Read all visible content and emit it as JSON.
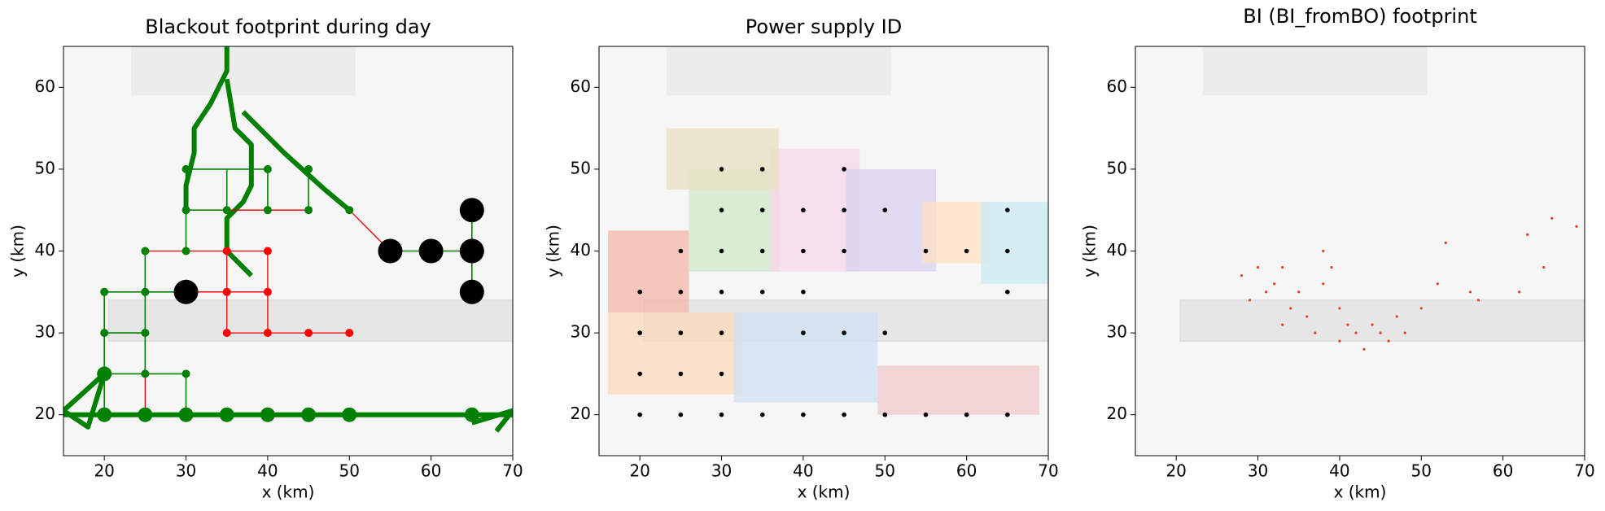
{
  "chart_data": [
    {
      "type": "network",
      "title": "Blackout footprint during day",
      "xlabel": "x (km)",
      "ylabel": "y (km)",
      "xlim": [
        15,
        70
      ],
      "ylim": [
        15,
        65
      ],
      "xticks": [
        20,
        30,
        40,
        50,
        60,
        70
      ],
      "yticks": [
        20,
        30,
        40,
        50,
        60
      ],
      "lines": [
        {
          "color": "#008000",
          "x": [
            15,
            20,
            25,
            30,
            35,
            40,
            45,
            50,
            55,
            60,
            65,
            70,
            null,
            15,
            20,
            18,
            15,
            null,
            65,
            70,
            68,
            null,
            35,
            35,
            34,
            33,
            31,
            31,
            30,
            30,
            null,
            35,
            36,
            38,
            38,
            37,
            35,
            35,
            38,
            null,
            37,
            42,
            47,
            50
          ],
          "y": [
            20,
            20,
            20,
            20,
            20,
            20,
            20,
            20,
            20,
            20,
            20,
            20,
            null,
            20.5,
            25,
            18.5,
            20.5,
            null,
            19,
            20.5,
            18,
            null,
            65,
            62,
            60,
            58,
            55,
            52,
            48,
            45,
            null,
            61,
            55,
            53,
            48,
            46,
            44,
            40,
            37,
            null,
            57,
            52,
            47.5,
            45
          ]
        },
        {
          "color": "#008000",
          "x": [
            20,
            25,
            30,
            null,
            20,
            25,
            null,
            20,
            25,
            30,
            null,
            20,
            20,
            null,
            25,
            25,
            null,
            30,
            30,
            null,
            30,
            30,
            null,
            30,
            40,
            null,
            30,
            35,
            null,
            35,
            35,
            null,
            40,
            40,
            null,
            45,
            45,
            null,
            55,
            65,
            null,
            65,
            65
          ],
          "y": [
            35,
            35,
            35,
            null,
            30,
            30,
            null,
            25,
            25,
            25,
            null,
            20,
            35,
            null,
            25,
            40,
            null,
            20,
            25,
            null,
            40,
            50,
            null,
            50,
            50,
            null,
            45,
            45,
            null,
            45,
            50,
            null,
            45,
            50,
            null,
            45,
            50,
            null,
            40,
            40,
            null,
            35,
            45
          ]
        },
        {
          "color": "#e00000",
          "x": [
            25,
            30,
            35,
            40,
            null,
            30,
            35,
            40,
            null,
            35,
            40,
            45,
            50,
            null,
            40,
            40,
            40,
            null,
            35,
            40,
            45,
            null,
            50,
            55,
            null,
            35,
            35,
            35,
            null,
            25,
            25
          ],
          "y": [
            40,
            40,
            40,
            40,
            null,
            35,
            35,
            35,
            null,
            30,
            30,
            30,
            30,
            null,
            30,
            35,
            40,
            null,
            45,
            45,
            45,
            null,
            45,
            40,
            null,
            30,
            35,
            40,
            null,
            20,
            25
          ]
        }
      ],
      "markers": [
        {
          "color": "#008000",
          "x": [
            20,
            25,
            20,
            25,
            25,
            30,
            25,
            30,
            30,
            35,
            40,
            45,
            30,
            40,
            45,
            50
          ],
          "y": [
            35,
            35,
            30,
            30,
            25,
            25,
            40,
            40,
            45,
            45,
            45,
            45,
            50,
            50,
            50,
            45
          ]
        },
        {
          "color": "#ff0000",
          "x": [
            35,
            40,
            35,
            40,
            35,
            40,
            45,
            50
          ],
          "y": [
            40,
            40,
            35,
            35,
            30,
            30,
            30,
            30
          ]
        },
        {
          "color": "#008000",
          "x": [
            20,
            20,
            25,
            30,
            35,
            40,
            45,
            50,
            65
          ],
          "y": [
            25,
            20,
            20,
            20,
            20,
            20,
            20,
            20,
            20
          ]
        },
        {
          "color": "#000000",
          "x": [
            30,
            55,
            60,
            65,
            65,
            65
          ],
          "y": [
            35,
            40,
            40,
            40,
            45,
            35
          ]
        }
      ]
    },
    {
      "type": "scatter",
      "title": "Power supply ID",
      "xlabel": "x (km)",
      "ylabel": "y (km)",
      "xlim": [
        15,
        70
      ],
      "ylim": [
        15,
        65
      ],
      "xticks": [
        20,
        30,
        40,
        50,
        60,
        70
      ],
      "yticks": [
        20,
        30,
        40,
        50,
        60
      ],
      "color": "#000000",
      "x": [
        30,
        35,
        45,
        30,
        35,
        40,
        45,
        50,
        65,
        25,
        30,
        35,
        40,
        45,
        55,
        60,
        65,
        20,
        25,
        30,
        35,
        40,
        65,
        20,
        25,
        30,
        40,
        45,
        50,
        20,
        25,
        30,
        20,
        25,
        30,
        35,
        40,
        45,
        50,
        55,
        60,
        65
      ],
      "y": [
        50,
        50,
        50,
        45,
        45,
        45,
        45,
        45,
        45,
        40,
        40,
        40,
        40,
        40,
        40,
        40,
        40,
        35,
        35,
        35,
        35,
        35,
        35,
        30,
        30,
        30,
        30,
        30,
        30,
        25,
        25,
        25,
        20,
        20,
        20,
        20,
        20,
        20,
        20,
        20,
        20,
        20
      ]
    },
    {
      "type": "scatter",
      "title": "BI (BI_fromBO) footprint",
      "xlabel": "x (km)",
      "ylabel": "y (km)",
      "xlim": [
        15,
        70
      ],
      "ylim": [
        15,
        65
      ],
      "xticks": [
        20,
        30,
        40,
        50,
        60,
        70
      ],
      "yticks": [
        20,
        30,
        40,
        50,
        60
      ],
      "color": "#e8401c",
      "x": [
        28,
        29,
        30,
        31,
        32,
        33,
        34,
        33,
        35,
        36,
        37,
        38,
        38,
        39,
        40,
        40,
        41,
        42,
        43,
        44,
        45,
        46,
        47,
        48,
        50,
        52,
        53,
        56,
        57,
        62,
        63,
        65,
        66,
        69
      ],
      "y": [
        37,
        34,
        38,
        35,
        36,
        38,
        33,
        31,
        35,
        32,
        30,
        36,
        40,
        38,
        33,
        29,
        31,
        30,
        28,
        31,
        30,
        29,
        32,
        30,
        33,
        36,
        41,
        35,
        34,
        35,
        42,
        38,
        44,
        43
      ]
    }
  ]
}
